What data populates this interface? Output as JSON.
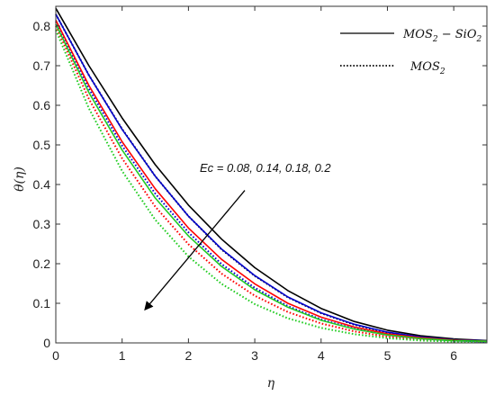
{
  "chart_data": {
    "type": "line",
    "xlabel": "η",
    "ylabel": "θ(η)",
    "xlim": [
      0,
      6.5
    ],
    "ylim": [
      0,
      0.85
    ],
    "x_ticks": [
      0,
      1,
      2,
      3,
      4,
      5,
      6
    ],
    "y_ticks": [
      0,
      0.1,
      0.2,
      0.3,
      0.4,
      0.5,
      0.6,
      0.7,
      0.8
    ],
    "grid": false,
    "legend": {
      "placement": "top-right",
      "entries": [
        {
          "label": "MOS2 − SiO2",
          "base": "MOS",
          "sub1": "2",
          "mid": " − SiO",
          "sub2": "2",
          "style": "solid"
        },
        {
          "label": "MOS2",
          "base": "MOS",
          "sub1": "2",
          "mid": "",
          "sub2": "",
          "style": "dotted"
        }
      ]
    },
    "annotation": {
      "text": "Ec = 0.08, 0.14, 0.18, 0.2",
      "arrow_from": [
        2.85,
        0.385
      ],
      "arrow_to": [
        1.35,
        0.085
      ]
    },
    "x": [
      0,
      0.5,
      1,
      1.5,
      2,
      2.5,
      3,
      3.5,
      4,
      4.5,
      5,
      5.5,
      6,
      6.5
    ],
    "series": [
      {
        "group": "MOS2-SiO2",
        "color": "#000000",
        "style": "solid",
        "values": [
          0.845,
          0.7,
          0.568,
          0.45,
          0.348,
          0.262,
          0.19,
          0.132,
          0.087,
          0.054,
          0.032,
          0.018,
          0.01,
          0.006
        ]
      },
      {
        "group": "MOS2-SiO2",
        "color": "#0000cc",
        "style": "solid",
        "values": [
          0.83,
          0.676,
          0.539,
          0.421,
          0.32,
          0.237,
          0.17,
          0.116,
          0.076,
          0.047,
          0.027,
          0.015,
          0.008,
          0.005
        ]
      },
      {
        "group": "MOS2-SiO2",
        "color": "#ff0000",
        "style": "solid",
        "values": [
          0.815,
          0.65,
          0.508,
          0.389,
          0.29,
          0.211,
          0.149,
          0.1,
          0.065,
          0.04,
          0.023,
          0.013,
          0.007,
          0.004
        ]
      },
      {
        "group": "MOS2-SiO2",
        "color": "#22cc22",
        "style": "solid",
        "values": [
          0.805,
          0.632,
          0.487,
          0.366,
          0.27,
          0.193,
          0.134,
          0.09,
          0.057,
          0.035,
          0.02,
          0.011,
          0.006,
          0.004
        ]
      },
      {
        "group": "MOS2",
        "color": "#000000",
        "style": "dotted",
        "values": [
          0.83,
          0.676,
          0.54,
          0.421,
          0.32,
          0.236,
          0.169,
          0.115,
          0.075,
          0.046,
          0.026,
          0.014,
          0.007,
          0.004
        ]
      },
      {
        "group": "MOS2",
        "color": "#0000cc",
        "style": "dotted",
        "values": [
          0.812,
          0.642,
          0.498,
          0.377,
          0.279,
          0.199,
          0.139,
          0.093,
          0.059,
          0.036,
          0.02,
          0.011,
          0.006,
          0.003
        ]
      },
      {
        "group": "MOS2",
        "color": "#ff0000",
        "style": "dotted",
        "values": [
          0.8,
          0.616,
          0.466,
          0.344,
          0.249,
          0.175,
          0.119,
          0.078,
          0.049,
          0.029,
          0.016,
          0.009,
          0.005,
          0.003
        ]
      },
      {
        "group": "MOS2",
        "color": "#22cc22",
        "style": "dotted",
        "values": [
          0.79,
          0.592,
          0.434,
          0.311,
          0.218,
          0.149,
          0.098,
          0.062,
          0.038,
          0.022,
          0.012,
          0.006,
          0.003,
          0.002
        ]
      }
    ]
  }
}
